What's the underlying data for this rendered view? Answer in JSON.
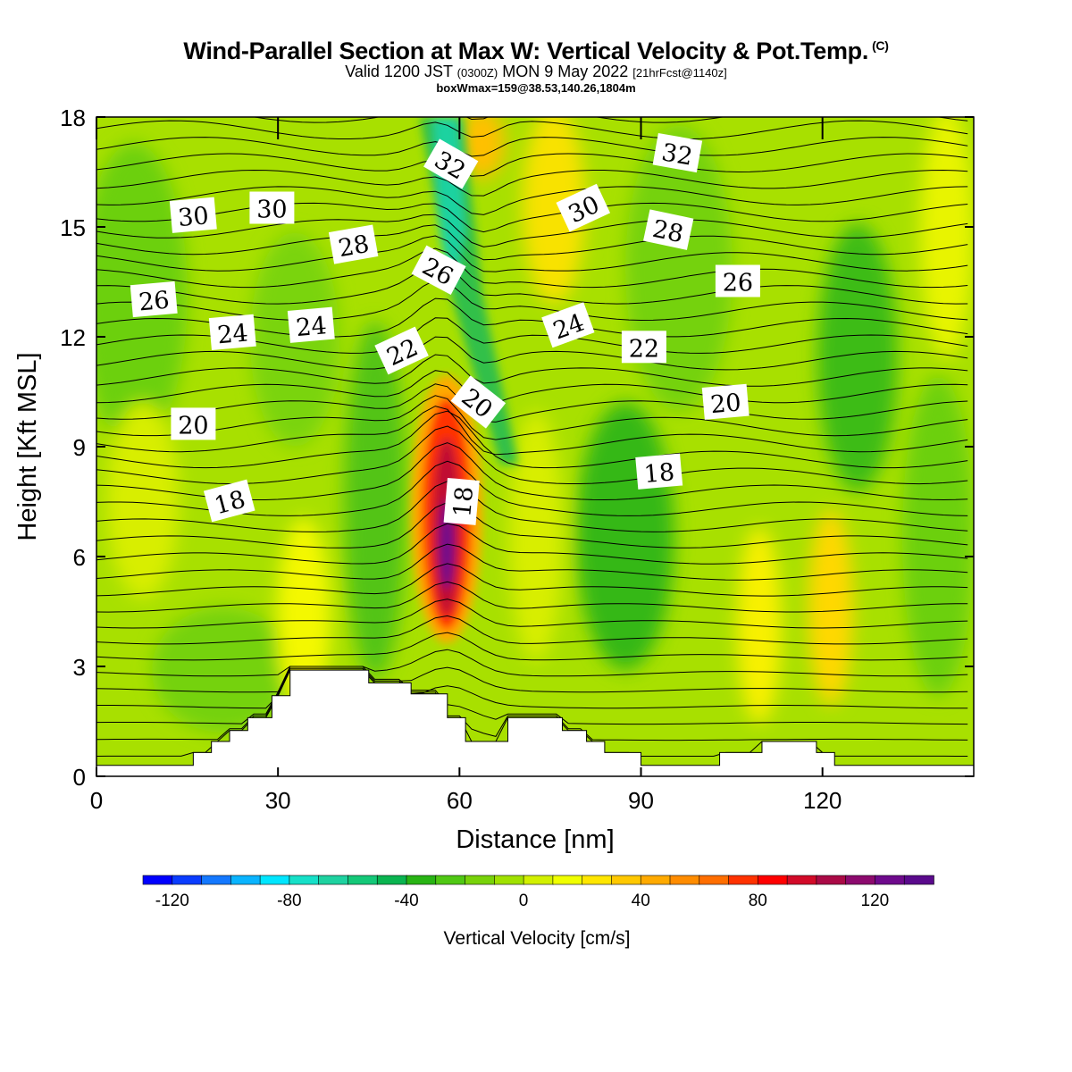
{
  "header": {
    "title_main": "Wind-Parallel Section at Max W: Vertical Velocity & Pot.Temp.",
    "title_mark": "(C)",
    "valid_prefix": "Valid 1200 JST",
    "valid_utc": "(0300Z)",
    "valid_date": "MON 9 May 2022",
    "valid_fcst": "[21hrFcst@1140z]",
    "box_info": "boxWmax=159@38.53,140.26,1804m"
  },
  "chart_data": {
    "type": "contour-section",
    "xlabel": "Distance [nm]",
    "ylabel": "Height [Kft MSL]",
    "xlim": [
      0,
      145
    ],
    "ylim": [
      0,
      18
    ],
    "x_ticks": [
      0,
      30,
      60,
      90,
      120
    ],
    "x_tick_labels": [
      "0",
      "30",
      "60",
      "90",
      "120"
    ],
    "y_ticks": [
      0,
      3,
      6,
      9,
      12,
      15,
      18
    ],
    "y_tick_labels": [
      "0",
      "3",
      "6",
      "9",
      "12",
      "15",
      "18"
    ],
    "fill_variable": "Vertical Velocity [cm/s]",
    "colorbar": {
      "title": "Vertical Velocity [cm/s]",
      "min": -130,
      "max": 140,
      "step": 10,
      "tick_values": [
        -120,
        -80,
        -40,
        0,
        40,
        80,
        120
      ],
      "tick_labels": [
        "-120",
        "-80",
        "-40",
        "0",
        "40",
        "80",
        "120"
      ],
      "colors": [
        "#0000ff",
        "#0a3cff",
        "#1478ff",
        "#0ab4ff",
        "#00e6ff",
        "#16e0c8",
        "#1ed2a0",
        "#14c878",
        "#0ab450",
        "#28b414",
        "#50c814",
        "#78d20a",
        "#a0e100",
        "#d2f000",
        "#f0ff00",
        "#ffe600",
        "#ffc800",
        "#ffaa00",
        "#ff8c00",
        "#ff6e00",
        "#ff3200",
        "#ff0000",
        "#d20a28",
        "#aa0a46",
        "#8c0a6e",
        "#6e0a8c",
        "#5a0a8c"
      ]
    },
    "theta_contour_labels": [
      {
        "value": "18",
        "x": 22,
        "y": 7.5,
        "rot": -15
      },
      {
        "value": "18",
        "x": 60.5,
        "y": 7.5,
        "rot": -85
      },
      {
        "value": "18",
        "x": 93,
        "y": 8.3,
        "rot": -5
      },
      {
        "value": "20",
        "x": 16,
        "y": 9.6,
        "rot": 0
      },
      {
        "value": "20",
        "x": 63,
        "y": 10.2,
        "rot": 38
      },
      {
        "value": "20",
        "x": 104,
        "y": 10.2,
        "rot": -5
      },
      {
        "value": "22",
        "x": 50.5,
        "y": 11.6,
        "rot": -25
      },
      {
        "value": "22",
        "x": 90.5,
        "y": 11.7,
        "rot": 0
      },
      {
        "value": "24",
        "x": 22.5,
        "y": 12.1,
        "rot": -5
      },
      {
        "value": "24",
        "x": 35.5,
        "y": 12.3,
        "rot": -5
      },
      {
        "value": "24",
        "x": 78,
        "y": 12.3,
        "rot": -20
      },
      {
        "value": "26",
        "x": 9.5,
        "y": 13.0,
        "rot": -5
      },
      {
        "value": "26",
        "x": 56.5,
        "y": 13.8,
        "rot": 28
      },
      {
        "value": "26",
        "x": 106,
        "y": 13.5,
        "rot": 0
      },
      {
        "value": "28",
        "x": 42.5,
        "y": 14.5,
        "rot": -10
      },
      {
        "value": "28",
        "x": 94.5,
        "y": 14.9,
        "rot": 12
      },
      {
        "value": "30",
        "x": 16,
        "y": 15.3,
        "rot": -5
      },
      {
        "value": "30",
        "x": 29,
        "y": 15.5,
        "rot": 0
      },
      {
        "value": "30",
        "x": 80.5,
        "y": 15.5,
        "rot": -25
      },
      {
        "value": "32",
        "x": 58.5,
        "y": 16.7,
        "rot": 30
      },
      {
        "value": "32",
        "x": 96,
        "y": 17.0,
        "rot": 10
      }
    ],
    "terrain_kft": [
      [
        0,
        0.3
      ],
      [
        16,
        0.3
      ],
      [
        16,
        0.65
      ],
      [
        19,
        0.65
      ],
      [
        19,
        0.95
      ],
      [
        22,
        0.95
      ],
      [
        22,
        1.25
      ],
      [
        25,
        1.25
      ],
      [
        25,
        1.6
      ],
      [
        29,
        1.6
      ],
      [
        29,
        2.2
      ],
      [
        32,
        2.2
      ],
      [
        32,
        2.9
      ],
      [
        45,
        2.9
      ],
      [
        45,
        2.55
      ],
      [
        52,
        2.55
      ],
      [
        52,
        2.25
      ],
      [
        58,
        2.25
      ],
      [
        58,
        1.6
      ],
      [
        61,
        1.6
      ],
      [
        61,
        0.95
      ],
      [
        68,
        0.95
      ],
      [
        68,
        1.6
      ],
      [
        77,
        1.6
      ],
      [
        77,
        1.25
      ],
      [
        81,
        1.25
      ],
      [
        81,
        0.95
      ],
      [
        84,
        0.95
      ],
      [
        84,
        0.65
      ],
      [
        90,
        0.65
      ],
      [
        90,
        0.3
      ],
      [
        103,
        0.3
      ],
      [
        103,
        0.65
      ],
      [
        110,
        0.65
      ],
      [
        110,
        0.95
      ],
      [
        119,
        0.95
      ],
      [
        119,
        0.65
      ],
      [
        122,
        0.65
      ],
      [
        122,
        0.3
      ],
      [
        145,
        0.3
      ]
    ]
  }
}
